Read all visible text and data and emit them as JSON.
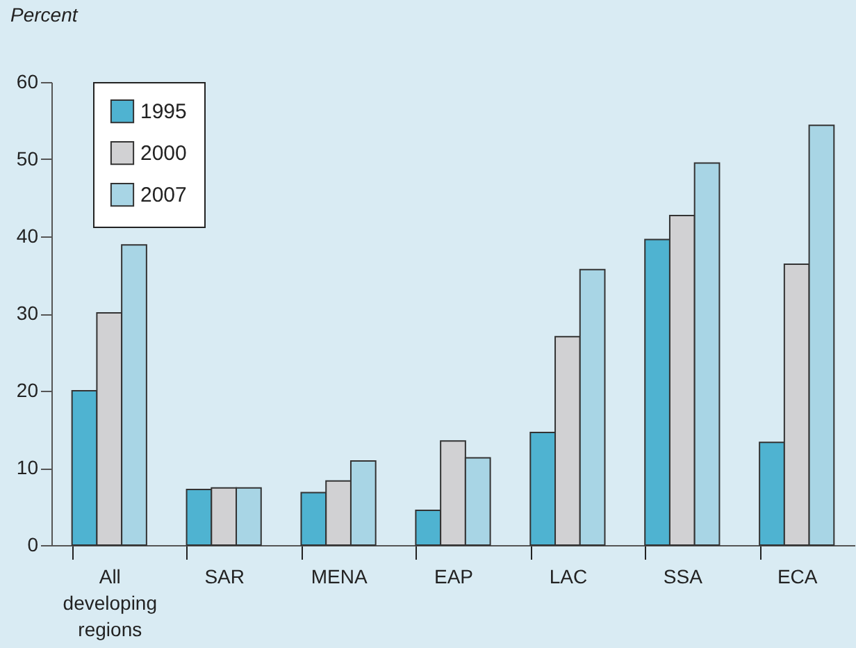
{
  "chart_data": {
    "type": "bar",
    "ylabel": "Percent",
    "categories": [
      "All developing regions",
      "SAR",
      "MENA",
      "EAP",
      "LAC",
      "SSA",
      "ECA"
    ],
    "series": [
      {
        "name": "1995",
        "color": "#4fb3d1",
        "values": [
          20,
          7.2,
          6.8,
          4.5,
          14.6,
          39.6,
          13.3
        ]
      },
      {
        "name": "2000",
        "color": "#d1d1d3",
        "values": [
          30.1,
          7.4,
          8.3,
          13.5,
          27,
          42.7,
          36.4
        ]
      },
      {
        "name": "2007",
        "color": "#a8d5e5",
        "values": [
          38.9,
          7.4,
          10.9,
          11.3,
          35.7,
          49.5,
          54.4
        ]
      }
    ],
    "ylim": [
      0,
      60
    ],
    "yticks": [
      0,
      10,
      20,
      30,
      40,
      50,
      60
    ],
    "grid": false,
    "legend": "top left"
  }
}
